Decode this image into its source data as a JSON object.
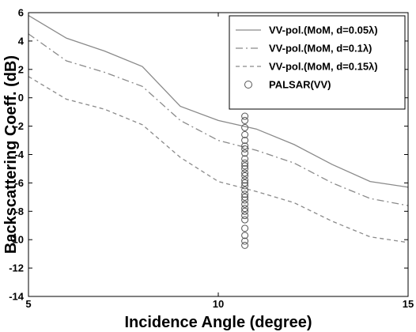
{
  "chart_data": {
    "type": "line",
    "title": "",
    "xlabel": "Incidence Angle (degree)",
    "ylabel": "Backscattering Coeff. (dB)",
    "xlim": [
      5,
      15
    ],
    "ylim": [
      -14,
      6
    ],
    "xticks": [
      5,
      10,
      15
    ],
    "yticks": [
      6,
      4,
      2,
      0,
      -2,
      -4,
      -6,
      -8,
      -10,
      -12,
      -14
    ],
    "grid": false,
    "legend_position": "top-right",
    "series": [
      {
        "name": "VV-pol.(MoM, d=0.05λ)",
        "style": "solid",
        "color": "#8a8a8a",
        "x": [
          5,
          6,
          7,
          8,
          9,
          10,
          11,
          12,
          13,
          14,
          15
        ],
        "y": [
          5.8,
          4.2,
          3.3,
          2.2,
          -0.6,
          -1.6,
          -2.2,
          -3.3,
          -4.7,
          -5.9,
          -6.3
        ]
      },
      {
        "name": "VV-pol.(MoM, d=0.1λ)",
        "style": "dashdot",
        "color": "#8a8a8a",
        "x": [
          5,
          6,
          7,
          8,
          9,
          10,
          11,
          12,
          13,
          14,
          15
        ],
        "y": [
          4.5,
          2.6,
          1.8,
          0.8,
          -1.6,
          -3.0,
          -3.7,
          -4.6,
          -6.0,
          -7.1,
          -7.6
        ]
      },
      {
        "name": "VV-pol.(MoM, d=0.15λ)",
        "style": "dash",
        "color": "#8a8a8a",
        "x": [
          5,
          6,
          7,
          8,
          9,
          10,
          11,
          12,
          13,
          14,
          15
        ],
        "y": [
          1.5,
          -0.1,
          -0.8,
          -1.9,
          -4.2,
          -5.9,
          -6.6,
          -7.4,
          -8.7,
          -9.8,
          -10.2
        ]
      },
      {
        "name": "PALSAR(VV)",
        "type": "scatter",
        "marker": "circle",
        "color": "#555555",
        "x": [
          10.7,
          10.7,
          10.7,
          10.7,
          10.7,
          10.7,
          10.7,
          10.7,
          10.7,
          10.7,
          10.7,
          10.7,
          10.7,
          10.7,
          10.7,
          10.7,
          10.7,
          10.7,
          10.7,
          10.7,
          10.7,
          10.7,
          10.7,
          10.7,
          10.7,
          10.7,
          10.7,
          10.7,
          10.7,
          10.7
        ],
        "y": [
          -1.3,
          -1.6,
          -2.1,
          -2.6,
          -3.0,
          -3.4,
          -3.6,
          -3.9,
          -4.3,
          -4.6,
          -4.8,
          -5.0,
          -5.3,
          -5.5,
          -5.8,
          -6.0,
          -6.2,
          -6.5,
          -6.8,
          -7.0,
          -7.2,
          -7.5,
          -7.8,
          -8.0,
          -8.3,
          -8.6,
          -9.2,
          -9.7,
          -10.1,
          -10.4
        ]
      }
    ]
  }
}
